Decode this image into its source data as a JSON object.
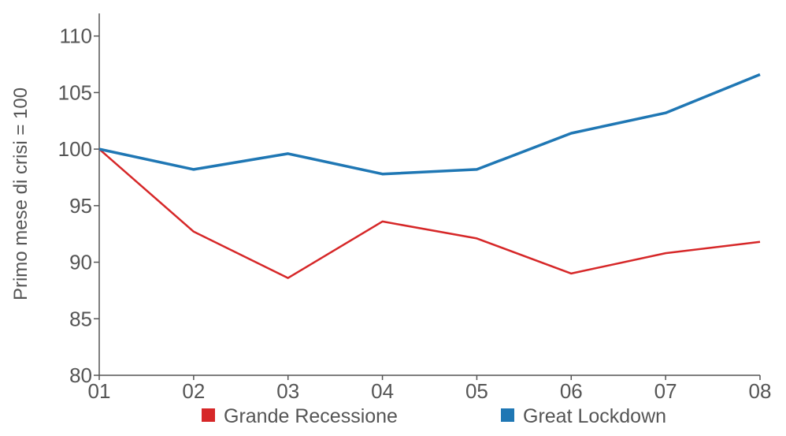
{
  "chart_data": {
    "type": "line",
    "title": "",
    "xlabel": "",
    "ylabel": "Primo mese di crisi = 100",
    "categories": [
      "01",
      "02",
      "03",
      "04",
      "05",
      "06",
      "07",
      "08"
    ],
    "ylim": [
      80,
      112
    ],
    "yticks": [
      80,
      85,
      90,
      95,
      100,
      105,
      110
    ],
    "grid": false,
    "legend_position": "bottom",
    "series": [
      {
        "name": "Grande Recessione",
        "color": "#d62728",
        "values": [
          100,
          92.7,
          88.6,
          93.6,
          92.1,
          89.0,
          90.8,
          91.8
        ]
      },
      {
        "name": "Great Lockdown",
        "color": "#1f77b4",
        "values": [
          100,
          98.2,
          99.6,
          97.8,
          98.2,
          101.4,
          103.2,
          106.6
        ]
      }
    ]
  }
}
